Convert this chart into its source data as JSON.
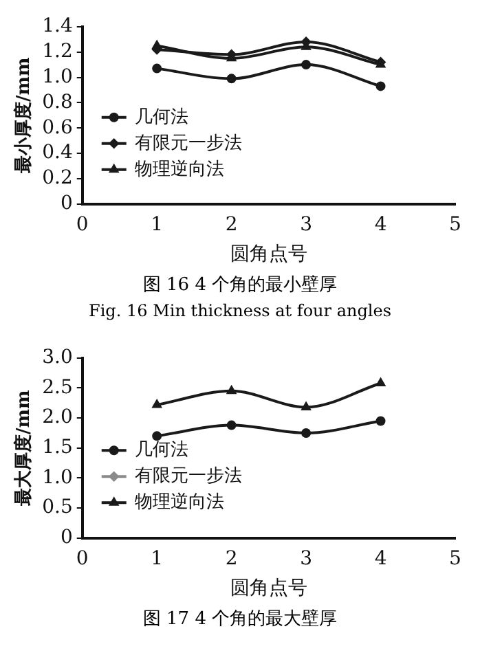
{
  "chart_data": [
    {
      "type": "line",
      "title": "图 16  4 个角的最小壁厚",
      "subtitle": "Fig. 16  Min thickness at four angles",
      "xlabel": "圆角点号",
      "ylabel": "最小厚度/mm",
      "x": [
        1,
        2,
        3,
        4
      ],
      "xlim": [
        0,
        5
      ],
      "xticks": [
        0,
        1,
        2,
        3,
        4,
        5
      ],
      "ylim": [
        0,
        1.4
      ],
      "yticks": [
        0,
        {
          "value": 0.2,
          "label": "0.2"
        },
        {
          "value": 0.4,
          "label": "0.4"
        },
        {
          "value": 0.6,
          "label": "0.6"
        },
        {
          "value": 0.8,
          "label": "0.8"
        },
        {
          "value": 1,
          "label": "1.0"
        },
        {
          "value": 1.2,
          "label": "1.2"
        },
        {
          "value": 1.4,
          "label": "1.4"
        }
      ],
      "grid": false,
      "legend": "left",
      "line_style": "solid",
      "series": [
        {
          "name": "几何法",
          "color": "#1a1a1a",
          "marker": "circle",
          "values": [
            1.07,
            0.99,
            1.1,
            0.93
          ]
        },
        {
          "name": "有限元一步法",
          "color": "#1a1a1a",
          "marker": "diamond",
          "values": [
            1.22,
            1.18,
            1.28,
            1.12
          ]
        },
        {
          "name": "物理逆向法",
          "color": "#1a1a1a",
          "marker": "triangle",
          "values": [
            1.25,
            1.15,
            1.24,
            1.1
          ]
        }
      ]
    },
    {
      "type": "line",
      "title": "图 17  4 个角的最大壁厚",
      "xlabel": "圆角点号",
      "ylabel": "最大厚度/mm",
      "x": [
        1,
        2,
        3,
        4
      ],
      "xlim": [
        0,
        5
      ],
      "xticks": [
        0,
        1,
        2,
        3,
        4,
        5
      ],
      "ylim": [
        0,
        3
      ],
      "yticks": [
        0,
        {
          "value": 0.5,
          "label": "0.5"
        },
        {
          "value": 1,
          "label": "1.0"
        },
        {
          "value": 1.5,
          "label": "1.5"
        },
        {
          "value": 2,
          "label": "2.0"
        },
        {
          "value": 2.5,
          "label": "2.5"
        },
        {
          "value": 3,
          "label": "3.0"
        }
      ],
      "grid": false,
      "legend": "left",
      "line_style": "solid",
      "series": [
        {
          "name": "几何法",
          "color": "#1a1a1a",
          "marker": "circle",
          "values": [
            1.7,
            1.88,
            1.75,
            1.95
          ]
        },
        {
          "name": "有限元一步法",
          "color": "#8a8a8a",
          "marker": "diamond",
          "values": [
            null,
            null,
            null,
            null
          ]
        },
        {
          "name": "物理逆向法",
          "color": "#1a1a1a",
          "marker": "triangle",
          "values": [
            2.22,
            2.45,
            2.18,
            2.58
          ]
        }
      ]
    }
  ]
}
